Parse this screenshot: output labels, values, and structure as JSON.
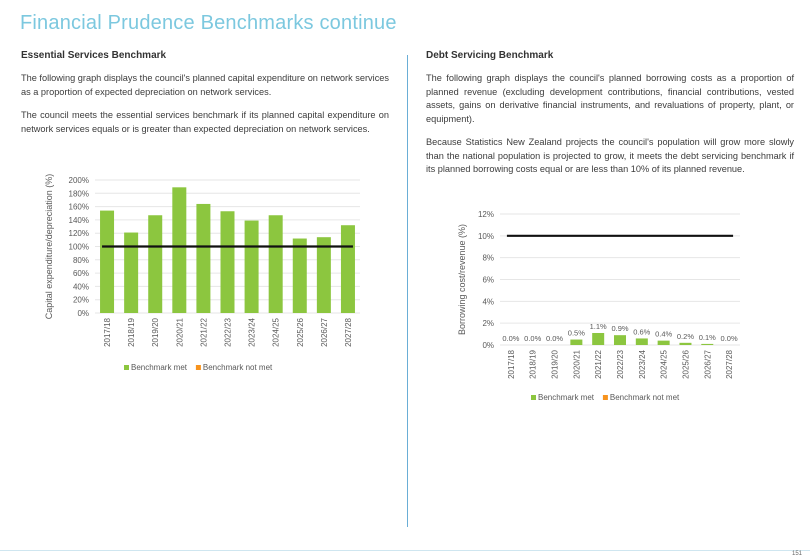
{
  "page": {
    "title": "Financial Prudence Benchmarks continue",
    "page_number": "151"
  },
  "left": {
    "heading": "Essential Services Benchmark",
    "para1": "The following graph displays the council's planned capital expenditure on network services as a proportion of expected depreciation on network services.",
    "para2": "The council meets the essential services benchmark if its planned capital expenditure on network services equals or is greater than expected depreciation on network services."
  },
  "right": {
    "heading": "Debt Servicing Benchmark",
    "para1": "The following graph displays the council's planned borrowing costs as a proportion of planned revenue (excluding development contributions, financial contributions, vested assets, gains on derivative financial instruments, and revaluations of property, plant, or equipment).",
    "para2": "Because Statistics New Zealand projects the council's population will grow more slowly than the national population is projected to grow, it meets the debt servicing benchmark if its planned borrowing costs equal or are less than 10% of its planned revenue."
  },
  "colors": {
    "met": "#8cc63f",
    "not_met": "#f7931e",
    "benchmark_line": "#111111",
    "grid": "#e6e6e6"
  },
  "chart_data": [
    {
      "type": "bar",
      "categories": [
        "2017/18",
        "2018/19",
        "2019/20",
        "2020/21",
        "2021/22",
        "2022/23",
        "2023/24",
        "2024/25",
        "2025/26",
        "2026/27",
        "2027/28"
      ],
      "series": [
        {
          "name": "Benchmark met",
          "values": [
            154,
            121,
            147,
            189,
            164,
            153,
            139,
            147,
            112,
            114,
            132
          ]
        },
        {
          "name": "Benchmark not met",
          "values": [
            0,
            0,
            0,
            0,
            0,
            0,
            0,
            0,
            0,
            0,
            0
          ]
        }
      ],
      "benchmark": 100,
      "ylabel": "Capital expenditure/depreciation (%)",
      "ylim": [
        0,
        200
      ],
      "yticks": [
        "0%",
        "20%",
        "40%",
        "60%",
        "80%",
        "100%",
        "120%",
        "140%",
        "160%",
        "180%",
        "200%"
      ],
      "legend": [
        "Benchmark met",
        "Benchmark not met"
      ],
      "legend_position": "bottom",
      "grid": true
    },
    {
      "type": "bar",
      "categories": [
        "2017/18",
        "2018/19",
        "2019/20",
        "2020/21",
        "2021/22",
        "2022/23",
        "2023/24",
        "2024/25",
        "2025/26",
        "2026/27",
        "2027/28"
      ],
      "series": [
        {
          "name": "Benchmark met",
          "values": [
            0.0,
            0.0,
            0.0,
            0.5,
            1.1,
            0.9,
            0.6,
            0.4,
            0.2,
            0.1,
            0.0
          ]
        },
        {
          "name": "Benchmark not met",
          "values": [
            0,
            0,
            0,
            0,
            0,
            0,
            0,
            0,
            0,
            0,
            0
          ]
        }
      ],
      "data_labels": [
        "0.0%",
        "0.0%",
        "0.0%",
        "0.5%",
        "1.1%",
        "0.9%",
        "0.6%",
        "0.4%",
        "0.2%",
        "0.1%",
        "0.0%"
      ],
      "benchmark": 10,
      "ylabel": "Borrowing cost/revenue (%)",
      "ylim": [
        0,
        12
      ],
      "yticks": [
        "0%",
        "2%",
        "4%",
        "6%",
        "8%",
        "10%",
        "12%"
      ],
      "legend": [
        "Benchmark met",
        "Benchmark not met"
      ],
      "legend_position": "bottom",
      "grid": true
    }
  ]
}
